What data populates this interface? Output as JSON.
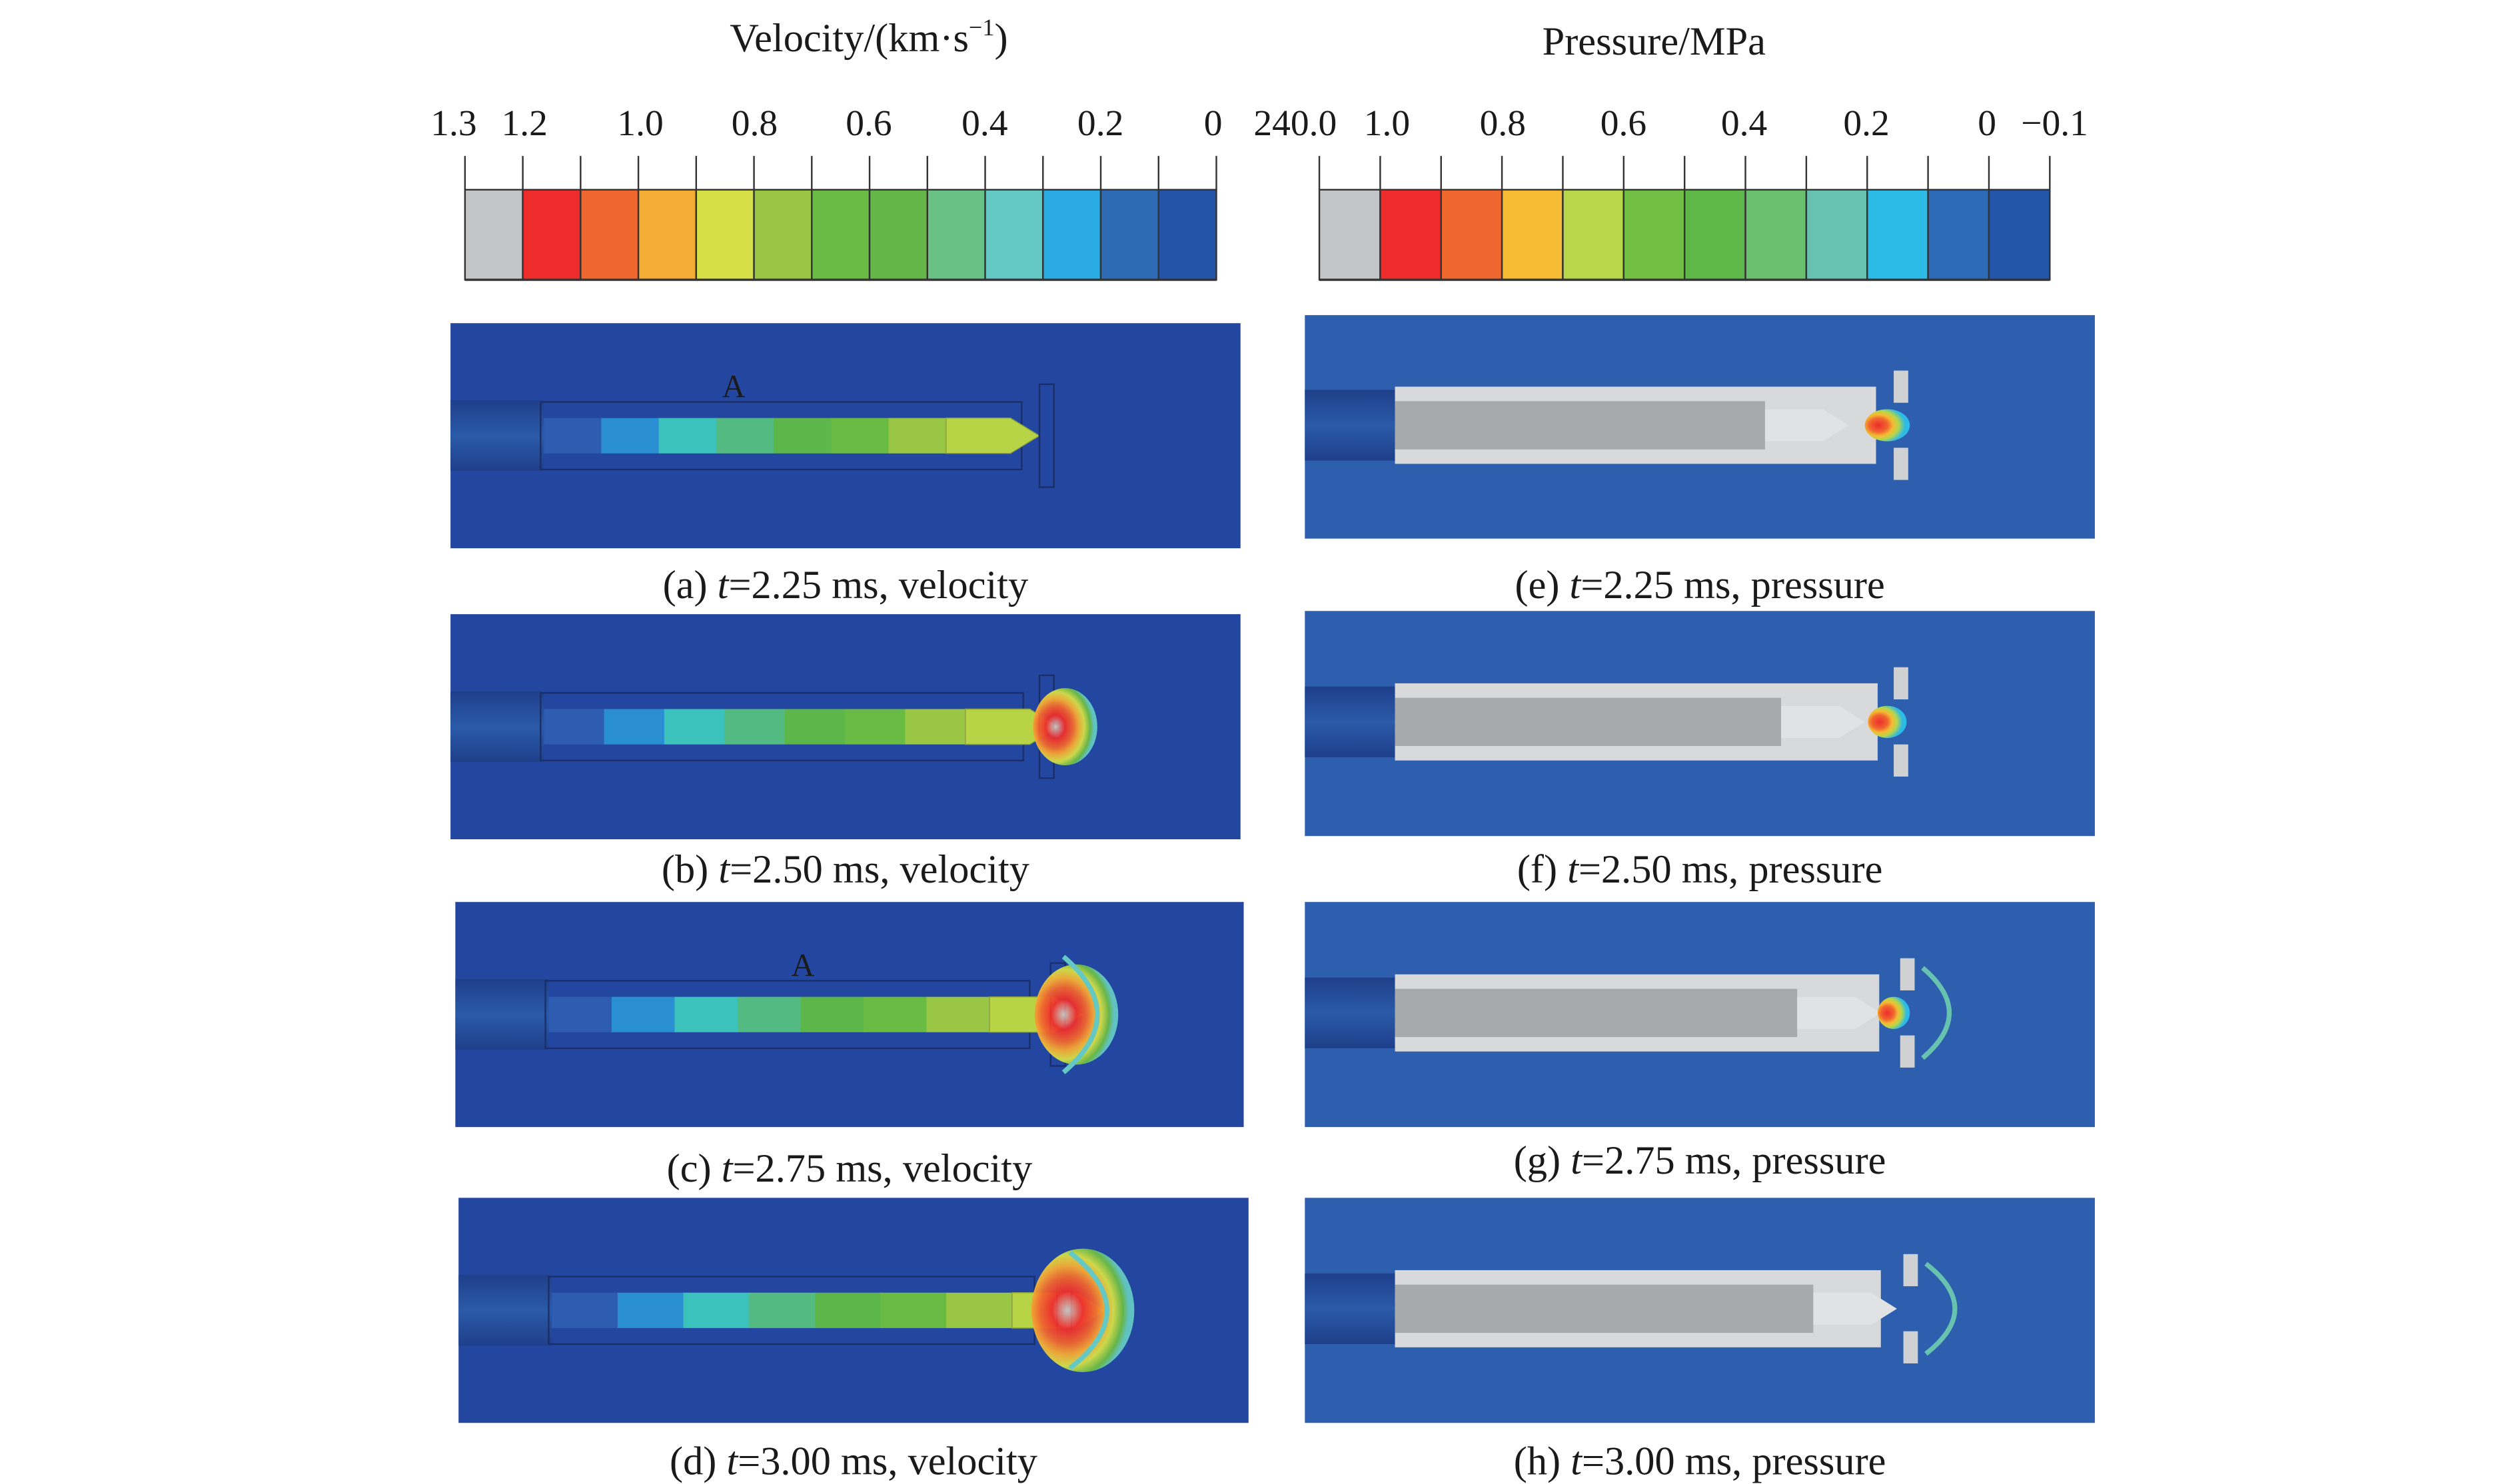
{
  "legends": {
    "velocity": {
      "title": "Velocity/(km·s",
      "title_sup": "−1",
      "title_end": ")",
      "ticks": [
        "1.3",
        "1.2",
        "1.0",
        "0.8",
        "0.6",
        "0.4",
        "0.2",
        "0"
      ],
      "colors": [
        "#c4c5c7",
        "#ee2c2c",
        "#f0662f",
        "#f5ac34",
        "#d6df47",
        "#99c745",
        "#6abb44",
        "#64b649",
        "#69c186",
        "#64c9c5",
        "#2aabe4",
        "#2d6bb5",
        "#2354a7"
      ]
    },
    "pressure": {
      "title": "Pressure/MPa",
      "ticks": [
        "240.0",
        "1.0",
        "0.8",
        "0.6",
        "0.4",
        "0.2",
        "0",
        "−0.1"
      ],
      "colors": [
        "#c4c5c7",
        "#ee2c2c",
        "#f0662f",
        "#f5bb33",
        "#b7d649",
        "#72be44",
        "#5db749",
        "#6ac06f",
        "#67c3b0",
        "#2cbae6",
        "#2d6ab6",
        "#2355a8"
      ]
    }
  },
  "panels": [
    {
      "id": "a",
      "caption_pre": "(a) ",
      "caption_t": "t",
      "caption_post": "=2.25 ms, velocity",
      "marker": "A",
      "kind": "velocity",
      "stage": 1
    },
    {
      "id": "e",
      "caption_pre": "(e) ",
      "caption_t": "t",
      "caption_post": "=2.25 ms, pressure",
      "marker": "",
      "kind": "pressure",
      "stage": 1
    },
    {
      "id": "b",
      "caption_pre": "(b) ",
      "caption_t": "t",
      "caption_post": "=2.50 ms, velocity",
      "marker": "",
      "kind": "velocity",
      "stage": 2
    },
    {
      "id": "f",
      "caption_pre": "(f) ",
      "caption_t": "t",
      "caption_post": "=2.50 ms, pressure",
      "marker": "",
      "kind": "pressure",
      "stage": 2
    },
    {
      "id": "c",
      "caption_pre": "(c) ",
      "caption_t": "t",
      "caption_post": "=2.75 ms, velocity",
      "marker": "A",
      "kind": "velocity",
      "stage": 3
    },
    {
      "id": "g",
      "caption_pre": "(g) ",
      "caption_t": "t",
      "caption_post": "=2.75 ms, pressure",
      "marker": "",
      "kind": "pressure",
      "stage": 3
    },
    {
      "id": "d",
      "caption_pre": "(d) ",
      "caption_t": "t",
      "caption_post": "=3.00 ms, velocity",
      "marker": "",
      "kind": "velocity",
      "stage": 4
    },
    {
      "id": "h",
      "caption_pre": "(h) ",
      "caption_t": "t",
      "caption_post": "=3.00 ms, pressure",
      "marker": "",
      "kind": "pressure",
      "stage": 4
    }
  ]
}
